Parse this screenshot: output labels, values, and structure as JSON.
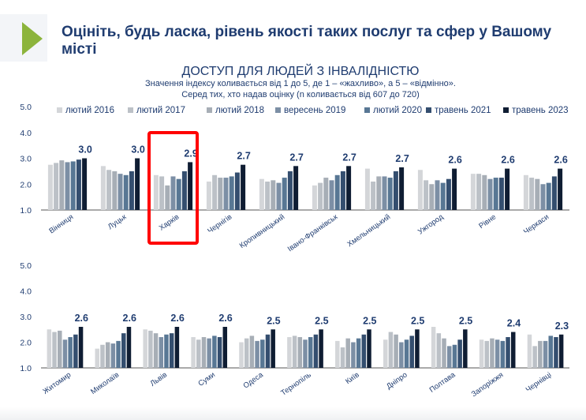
{
  "slide": {
    "heading": "Оцініть, будь ласка, рівень якості таких послуг та сфер у Вашому місті",
    "accent_color": "#8cb43c",
    "heading_color": "#1f3c70"
  },
  "chart_data": {
    "type": "bar",
    "title": "ДОСТУП ДЛЯ ЛЮДЕЙ З ІНВАЛІДНІСТЮ",
    "subtitle_1": "Значення індексу коливається від 1 до 5, де 1 – «жахливо», а 5 – «відмінно».",
    "subtitle_2": "Серед тих, хто надав оцінку (n коливається від 607 до 720)",
    "ylim": [
      1.0,
      5.0
    ],
    "yticks": [
      "1.0",
      "2.0",
      "3.0",
      "4.0",
      "5.0"
    ],
    "highlight_category": "Харків",
    "highlight_color": "#ff0000",
    "series": [
      {
        "name": "лютий 2016",
        "color": "#d4d6d9"
      },
      {
        "name": "лютий 2017",
        "color": "#bcc1c7"
      },
      {
        "name": "лютий 2018",
        "color": "#a7aeb6"
      },
      {
        "name": "вересень 2019",
        "color": "#7c8fa5"
      },
      {
        "name": "лютий 2020",
        "color": "#587794"
      },
      {
        "name": "травень 2021",
        "color": "#344e6f"
      },
      {
        "name": "травень 2023",
        "color": "#0f1d33"
      }
    ],
    "panels": [
      {
        "categories": [
          "Вінниця",
          "Луцьк",
          "Харків",
          "Чернігів",
          "Кропивницький",
          "Івано-Франківськ",
          "Хмельницький",
          "Ужгород",
          "Рівне",
          "Черкаси"
        ],
        "labels": [
          "3.0",
          "3.0",
          "2.9",
          "2.7",
          "2.7",
          "2.7",
          "2.7",
          "2.6",
          "2.6",
          "2.6"
        ],
        "values": [
          [
            2.75,
            2.82,
            2.92,
            2.85,
            2.88,
            2.95,
            3.0
          ],
          [
            2.7,
            2.55,
            2.5,
            2.4,
            2.35,
            2.5,
            3.0
          ],
          [
            2.35,
            2.3,
            1.95,
            2.3,
            2.2,
            2.5,
            2.85
          ],
          [
            2.1,
            2.35,
            2.25,
            2.25,
            2.3,
            2.45,
            2.75
          ],
          [
            2.2,
            2.1,
            2.15,
            2.05,
            2.25,
            2.5,
            2.7
          ],
          [
            1.95,
            2.05,
            2.25,
            2.15,
            2.35,
            2.5,
            2.7
          ],
          [
            2.6,
            2.1,
            2.3,
            2.3,
            2.25,
            2.5,
            2.65
          ],
          [
            2.55,
            2.15,
            2.0,
            2.15,
            2.05,
            2.2,
            2.6
          ],
          [
            2.4,
            2.4,
            2.35,
            2.2,
            2.25,
            2.25,
            2.6
          ],
          [
            2.35,
            2.25,
            2.2,
            2.0,
            2.05,
            2.3,
            2.6
          ]
        ]
      },
      {
        "categories": [
          "Житомир",
          "Миколаїв",
          "Львів",
          "Суми",
          "Одеса",
          "Тернопіль",
          "Київ",
          "Дніпро",
          "Полтава",
          "Запоріжжя",
          "Чернівці"
        ],
        "labels": [
          "2.6",
          "2.6",
          "2.6",
          "2.6",
          "2.5",
          "2.5",
          "2.5",
          "2.5",
          "2.5",
          "2.4",
          "2.3"
        ],
        "values": [
          [
            2.5,
            2.4,
            2.45,
            2.1,
            2.2,
            2.3,
            2.6
          ],
          [
            1.75,
            1.9,
            2.0,
            1.95,
            2.05,
            2.35,
            2.6
          ],
          [
            2.5,
            2.45,
            2.35,
            2.2,
            2.3,
            2.35,
            2.6
          ],
          [
            2.2,
            2.1,
            2.2,
            2.15,
            2.25,
            2.2,
            2.6
          ],
          [
            2.0,
            2.15,
            2.25,
            2.05,
            2.1,
            2.3,
            2.5
          ],
          [
            2.2,
            2.25,
            2.2,
            2.1,
            2.2,
            2.3,
            2.5
          ],
          [
            2.05,
            1.8,
            2.15,
            2.0,
            2.15,
            2.3,
            2.5
          ],
          [
            2.1,
            2.4,
            2.3,
            2.0,
            2.1,
            2.25,
            2.5
          ],
          [
            2.6,
            2.35,
            2.15,
            1.85,
            1.9,
            2.1,
            2.5
          ],
          [
            2.1,
            2.05,
            2.15,
            2.1,
            2.05,
            2.2,
            2.4
          ],
          [
            2.3,
            1.85,
            2.05,
            2.05,
            2.25,
            2.2,
            2.3
          ]
        ]
      }
    ]
  }
}
